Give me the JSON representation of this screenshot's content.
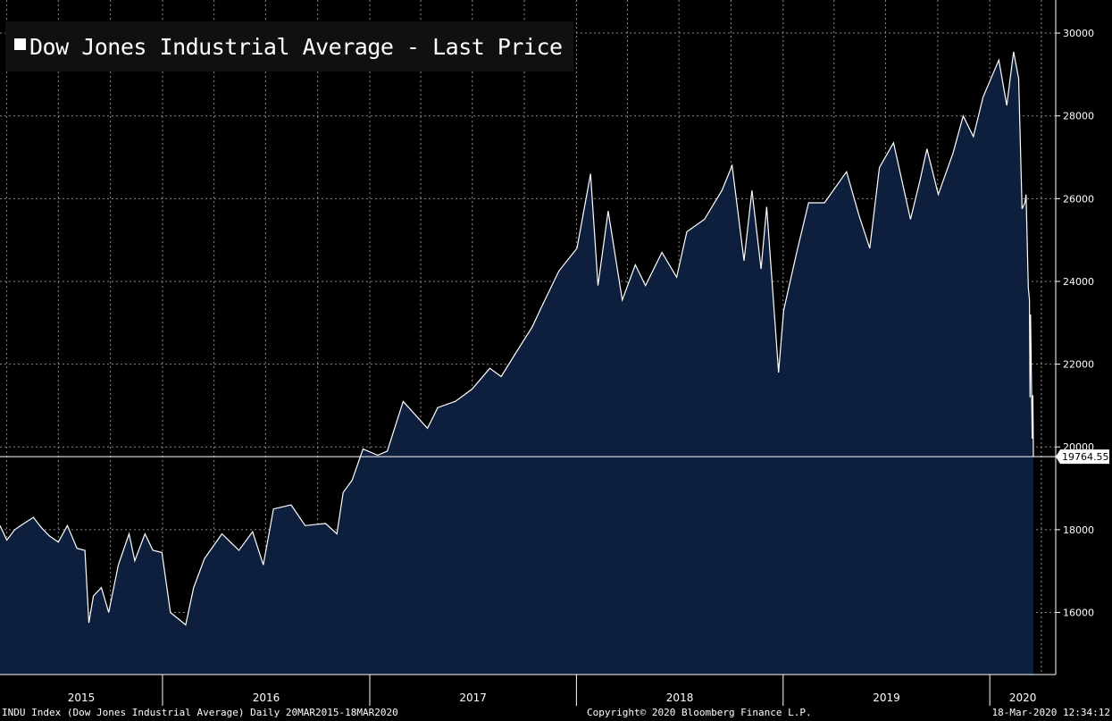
{
  "title": "Dow Jones Industrial Average - Last Price",
  "footer": {
    "left": "INDU Index (Dow Jones Industrial Average)  Daily 20MAR2015-18MAR2020",
    "center": "Copyright© 2020 Bloomberg Finance L.P.",
    "right": "18-Mar-2020 12:34:12"
  },
  "colors": {
    "background": "#000000",
    "area_fill": "#0d1f3d",
    "line": "#ffffff",
    "grid": "#8a8a8a"
  },
  "chart_data": {
    "type": "area",
    "title": "Dow Jones Industrial Average - Last Price",
    "xlim": [
      "2015-03-20",
      "2020-03-18"
    ],
    "ylim": [
      14500,
      30800
    ],
    "y_ticks": [
      16000,
      18000,
      20000,
      22000,
      24000,
      26000,
      28000,
      30000
    ],
    "x_tick_labels": [
      "2015",
      "2016",
      "2017",
      "2018",
      "2019",
      "2020"
    ],
    "last_value": 19764.55,
    "last_value_label": "19764.55",
    "grid": true,
    "y_axis_side": "right",
    "series": [
      {
        "values": [
          [
            "2015-03-20",
            18100
          ],
          [
            "2015-04-01",
            17750
          ],
          [
            "2015-04-15",
            18000
          ],
          [
            "2015-04-28",
            18120
          ],
          [
            "2015-05-18",
            18300
          ],
          [
            "2015-06-01",
            18050
          ],
          [
            "2015-06-15",
            17850
          ],
          [
            "2015-07-01",
            17700
          ],
          [
            "2015-07-17",
            18100
          ],
          [
            "2015-08-03",
            17550
          ],
          [
            "2015-08-17",
            17500
          ],
          [
            "2015-08-24",
            15750
          ],
          [
            "2015-09-01",
            16400
          ],
          [
            "2015-09-15",
            16600
          ],
          [
            "2015-09-28",
            16000
          ],
          [
            "2015-10-15",
            17150
          ],
          [
            "2015-11-03",
            17900
          ],
          [
            "2015-11-13",
            17250
          ],
          [
            "2015-12-01",
            17900
          ],
          [
            "2015-12-15",
            17500
          ],
          [
            "2015-12-31",
            17450
          ],
          [
            "2016-01-15",
            16000
          ],
          [
            "2016-02-11",
            15700
          ],
          [
            "2016-02-25",
            16600
          ],
          [
            "2016-03-15",
            17300
          ],
          [
            "2016-04-15",
            17900
          ],
          [
            "2016-05-15",
            17500
          ],
          [
            "2016-06-08",
            17950
          ],
          [
            "2016-06-27",
            17150
          ],
          [
            "2016-07-15",
            18500
          ],
          [
            "2016-08-15",
            18600
          ],
          [
            "2016-09-09",
            18100
          ],
          [
            "2016-10-15",
            18150
          ],
          [
            "2016-11-04",
            17900
          ],
          [
            "2016-11-15",
            18900
          ],
          [
            "2016-12-01",
            19200
          ],
          [
            "2016-12-20",
            19950
          ],
          [
            "2017-01-15",
            19800
          ],
          [
            "2017-02-01",
            19900
          ],
          [
            "2017-03-01",
            21100
          ],
          [
            "2017-04-13",
            20450
          ],
          [
            "2017-05-01",
            20950
          ],
          [
            "2017-06-01",
            21100
          ],
          [
            "2017-07-01",
            21400
          ],
          [
            "2017-08-01",
            21900
          ],
          [
            "2017-08-21",
            21700
          ],
          [
            "2017-09-15",
            22250
          ],
          [
            "2017-10-15",
            22900
          ],
          [
            "2017-11-01",
            23400
          ],
          [
            "2017-12-01",
            24250
          ],
          [
            "2018-01-02",
            24800
          ],
          [
            "2018-01-26",
            26600
          ],
          [
            "2018-02-08",
            23900
          ],
          [
            "2018-02-26",
            25700
          ],
          [
            "2018-03-23",
            23550
          ],
          [
            "2018-04-15",
            24400
          ],
          [
            "2018-05-03",
            23900
          ],
          [
            "2018-06-01",
            24700
          ],
          [
            "2018-06-27",
            24100
          ],
          [
            "2018-07-15",
            25200
          ],
          [
            "2018-08-15",
            25500
          ],
          [
            "2018-09-15",
            26200
          ],
          [
            "2018-10-03",
            26800
          ],
          [
            "2018-10-24",
            24500
          ],
          [
            "2018-11-07",
            26200
          ],
          [
            "2018-11-23",
            24300
          ],
          [
            "2018-12-03",
            25800
          ],
          [
            "2018-12-24",
            21800
          ],
          [
            "2019-01-02",
            23300
          ],
          [
            "2019-01-25",
            24700
          ],
          [
            "2019-02-15",
            25900
          ],
          [
            "2019-03-15",
            25900
          ],
          [
            "2019-04-23",
            26650
          ],
          [
            "2019-05-15",
            25600
          ],
          [
            "2019-06-03",
            24800
          ],
          [
            "2019-06-20",
            26750
          ],
          [
            "2019-07-15",
            27350
          ],
          [
            "2019-08-14",
            25500
          ],
          [
            "2019-08-30",
            26400
          ],
          [
            "2019-09-12",
            27200
          ],
          [
            "2019-10-02",
            26100
          ],
          [
            "2019-10-28",
            27100
          ],
          [
            "2019-11-15",
            28000
          ],
          [
            "2019-12-03",
            27500
          ],
          [
            "2019-12-20",
            28450
          ],
          [
            "2020-01-17",
            29350
          ],
          [
            "2020-01-31",
            28250
          ],
          [
            "2020-02-12",
            29550
          ],
          [
            "2020-02-21",
            28900
          ],
          [
            "2020-02-27",
            25750
          ],
          [
            "2020-03-03",
            25900
          ],
          [
            "2020-03-05",
            26100
          ],
          [
            "2020-03-09",
            23850
          ],
          [
            "2020-03-11",
            23550
          ],
          [
            "2020-03-12",
            21200
          ],
          [
            "2020-03-13",
            23200
          ],
          [
            "2020-03-16",
            20200
          ],
          [
            "2020-03-17",
            21250
          ],
          [
            "2020-03-18",
            19764.55
          ]
        ]
      }
    ]
  }
}
